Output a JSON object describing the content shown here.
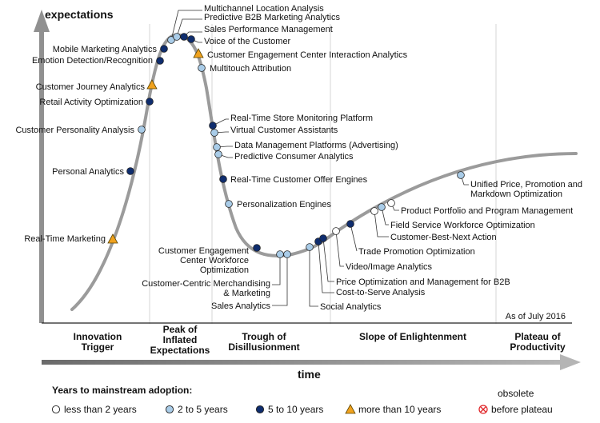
{
  "y_axis_label": "expectations",
  "x_axis_label": "time",
  "as_of": "As of July 2016",
  "phases": [
    {
      "lines": [
        "Innovation",
        "Trigger"
      ]
    },
    {
      "lines": [
        "Peak of",
        "Inflated",
        "Expectations"
      ]
    },
    {
      "lines": [
        "Trough of",
        "Disillusionment"
      ]
    },
    {
      "lines": [
        "Slope of Enlightenment"
      ]
    },
    {
      "lines": [
        "Plateau of",
        "Productivity"
      ]
    }
  ],
  "legend": {
    "title": "Years to mainstream adoption:",
    "items": [
      {
        "key": "lt2",
        "label": "less than 2 years",
        "color": "#ffffff"
      },
      {
        "key": "2to5",
        "label": "2 to 5 years",
        "color": "#a9cce8"
      },
      {
        "key": "5to10",
        "label": "5 to 10 years",
        "color": "#0f2d6e"
      },
      {
        "key": "gt10",
        "label": "more than 10 years",
        "color": "#f0a21e"
      },
      {
        "key": "obs",
        "label": "before plateau",
        "label_top": "obsolete",
        "color": "#e0262a"
      }
    ]
  },
  "technologies": [
    {
      "name": "Real-Time Marketing",
      "adoption": "gt10"
    },
    {
      "name": "Personal Analytics",
      "adoption": "5to10"
    },
    {
      "name": "Customer Personality Analysis",
      "adoption": "2to5"
    },
    {
      "name": "Retail Activity Optimization",
      "adoption": "5to10"
    },
    {
      "name": "Customer Journey Analytics",
      "adoption": "gt10"
    },
    {
      "name": "Emotion Detection/Recognition",
      "adoption": "5to10"
    },
    {
      "name": "Mobile Marketing Analytics",
      "adoption": "5to10"
    },
    {
      "name": "Multichannel Location Analysis",
      "adoption": "2to5"
    },
    {
      "name": "Predictive B2B Marketing Analytics",
      "adoption": "2to5"
    },
    {
      "name": "Sales Performance Management",
      "adoption": "5to10"
    },
    {
      "name": "Voice of the Customer",
      "adoption": "5to10"
    },
    {
      "name": "Customer Engagement Center Interaction Analytics",
      "adoption": "gt10"
    },
    {
      "name": "Multitouch Attribution",
      "adoption": "2to5"
    },
    {
      "name": "Real-Time Store Monitoring Platform",
      "adoption": "5to10"
    },
    {
      "name": "Virtual Customer Assistants",
      "adoption": "2to5"
    },
    {
      "name": "Data Management Platforms (Advertising)",
      "adoption": "2to5"
    },
    {
      "name": "Predictive Consumer Analytics",
      "adoption": "2to5"
    },
    {
      "name": "Real-Time Customer Offer Engines",
      "adoption": "5to10"
    },
    {
      "name": "Personalization Engines",
      "adoption": "2to5"
    },
    {
      "name": "Customer Engagement Center Workforce Optimization",
      "label_lines": [
        "Customer Engagement",
        "Center Workforce",
        "Optimization"
      ],
      "adoption": "5to10"
    },
    {
      "name": "Customer-Centric Merchandising & Marketing",
      "label_lines": [
        "Customer-Centric Merchandising",
        "& Marketing"
      ],
      "adoption": "2to5"
    },
    {
      "name": "Sales Analytics",
      "adoption": "2to5"
    },
    {
      "name": "Social Analytics",
      "adoption": "2to5"
    },
    {
      "name": "Cost-to-Serve Analysis",
      "adoption": "5to10"
    },
    {
      "name": "Price Optimization and Management for B2B",
      "adoption": "5to10"
    },
    {
      "name": "Video/Image Analytics",
      "adoption": "lt2"
    },
    {
      "name": "Trade Promotion Optimization",
      "adoption": "5to10"
    },
    {
      "name": "Customer-Best-Next Action",
      "adoption": "lt2"
    },
    {
      "name": "Field Service Workforce Optimization",
      "adoption": "2to5"
    },
    {
      "name": "Product Portfolio and Program Management",
      "adoption": "lt2"
    },
    {
      "name": "Unified Price, Promotion and Markdown Optimization",
      "label_lines": [
        "Unified Price, Promotion and",
        "Markdown Optimization"
      ],
      "adoption": "2to5"
    }
  ]
}
